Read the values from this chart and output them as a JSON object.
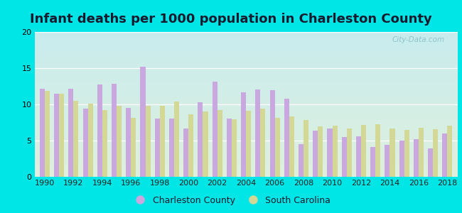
{
  "title": "Infant deaths per 1000 population in Charleston County",
  "years": [
    1990,
    1991,
    1992,
    1993,
    1994,
    1995,
    1996,
    1997,
    1998,
    1999,
    2000,
    2001,
    2002,
    2003,
    2004,
    2005,
    2006,
    2007,
    2008,
    2009,
    2010,
    2011,
    2012,
    2013,
    2014,
    2015,
    2016,
    2017,
    2018
  ],
  "charleston": [
    12.2,
    11.5,
    12.2,
    9.4,
    12.7,
    12.8,
    9.5,
    15.2,
    8.0,
    8.0,
    6.7,
    10.3,
    13.1,
    8.0,
    11.7,
    12.1,
    12.0,
    10.8,
    4.5,
    6.4,
    6.7,
    5.5,
    5.6,
    4.1,
    4.4,
    5.0,
    5.2,
    3.9,
    6.0
  ],
  "south_carolina": [
    11.9,
    11.5,
    10.5,
    10.1,
    9.2,
    9.8,
    8.1,
    9.8,
    9.8,
    10.4,
    8.6,
    9.0,
    9.2,
    7.9,
    9.1,
    9.4,
    8.1,
    8.3,
    7.8,
    7.0,
    7.1,
    6.7,
    7.2,
    7.3,
    6.7,
    6.5,
    6.8,
    6.6,
    7.1
  ],
  "charleston_color": "#c9a8e0",
  "sc_color": "#d4d896",
  "ylim": [
    0,
    20
  ],
  "yticks": [
    0,
    5,
    10,
    15,
    20
  ],
  "title_fontsize": 13,
  "outer_bg": "#00e5e5",
  "bg_top": "#c8ecee",
  "bg_bottom": "#dff0de",
  "legend_charleston": "Charleston County",
  "legend_sc": "South Carolina",
  "watermark": "City-Data.com",
  "bar_width": 0.35
}
